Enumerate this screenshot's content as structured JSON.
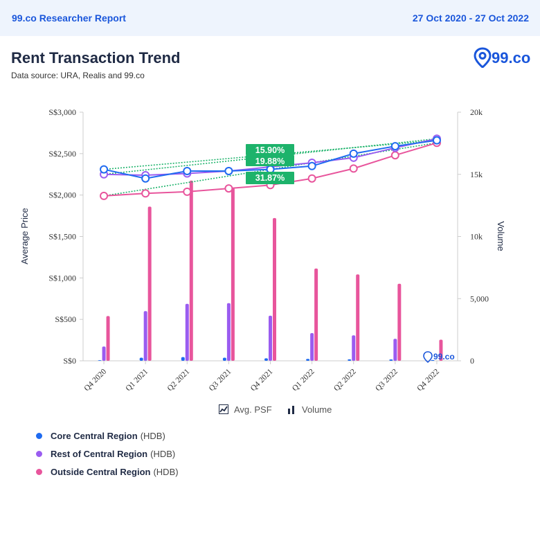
{
  "header": {
    "brand": "99.co Researcher Report",
    "date_range": "27 Oct 2020 - 27 Oct 2022"
  },
  "chart_header": {
    "title": "Rent Transaction Trend",
    "source": "Data source: URA, Realis and 99.co",
    "logo_text": "99.co"
  },
  "toggles": {
    "avg_psf": "Avg. PSF",
    "volume": "Volume"
  },
  "legend": [
    {
      "name": "Core Central Region",
      "suffix": "(HDB)",
      "color": "#1f6bf0"
    },
    {
      "name": "Rest of Central Region",
      "suffix": "(HDB)",
      "color": "#9a5cf0"
    },
    {
      "name": "Outside Central Region",
      "suffix": "(HDB)",
      "color": "#e8559c"
    }
  ],
  "chart_data": {
    "type": "bar+line",
    "xlabel": "",
    "ylabel": "Average Price",
    "y2label": "Volume",
    "ylim": [
      0,
      3000
    ],
    "y2lim": [
      0,
      20000
    ],
    "yticks": [
      "S$0",
      "S$500",
      "S$1,000",
      "S$1,500",
      "S$2,000",
      "S$2,500",
      "S$3,000"
    ],
    "y2ticks": [
      "0",
      "5,000",
      "10k",
      "15k",
      "20k"
    ],
    "categories": [
      "Q4 2020",
      "Q1 2021",
      "Q2 2021",
      "Q3 2021",
      "Q4 2021",
      "Q1 2022",
      "Q2 2022",
      "Q3 2022",
      "Q4 2022"
    ],
    "line_series": [
      {
        "region": "Core Central Region",
        "color": "#1f6bf0",
        "values": [
          2310,
          2200,
          2290,
          2290,
          2310,
          2350,
          2500,
          2590,
          2660
        ]
      },
      {
        "region": "Rest of Central Region",
        "color": "#9a5cf0",
        "values": [
          2250,
          2240,
          2260,
          2290,
          2340,
          2390,
          2450,
          2570,
          2680
        ]
      },
      {
        "region": "Outside Central Region",
        "color": "#e8559c",
        "values": [
          1990,
          2020,
          2040,
          2080,
          2120,
          2200,
          2320,
          2480,
          2630
        ]
      }
    ],
    "bar_series": [
      {
        "region": "Core Central Region",
        "color": "#1f6bf0",
        "values": [
          50,
          250,
          300,
          250,
          200,
          150,
          120,
          110,
          60
        ]
      },
      {
        "region": "Rest of Central Region",
        "color": "#9a5cf0",
        "values": [
          1150,
          4000,
          4580,
          4640,
          3630,
          2230,
          2050,
          1770,
          0
        ]
      },
      {
        "region": "Outside Central Region",
        "color": "#e8559c",
        "values": [
          3600,
          12400,
          14500,
          13900,
          11480,
          7420,
          6950,
          6200,
          1700
        ]
      }
    ],
    "trend_labels": [
      "15.90%",
      "19.88%",
      "31.87%"
    ],
    "trend_label_color": "#1db36b",
    "grid": false
  }
}
